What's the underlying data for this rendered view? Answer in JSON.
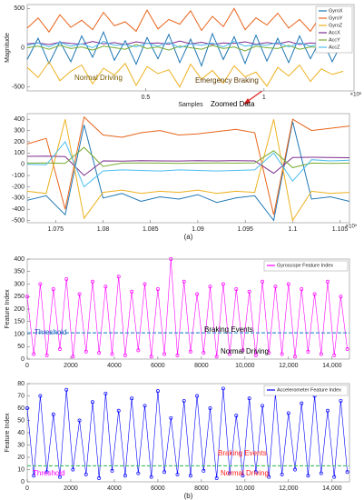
{
  "chart_data": [
    {
      "type": "line",
      "xlabel": "Samples",
      "ylabel": "Magnitude",
      "x_exponent": "×10⁶",
      "x": [
        0,
        46000,
        92000,
        138000,
        184000,
        230000,
        276000,
        322000,
        368000,
        414000,
        460000,
        506000,
        552000,
        598000,
        644000,
        690000,
        736000,
        782000,
        828000,
        874000,
        920000,
        966000,
        1012000,
        1058000,
        1104000,
        1150000,
        1196000,
        1242000,
        1288000,
        1334000
      ],
      "xlim": [
        0,
        1380000
      ],
      "xticks": [
        {
          "value": 500000,
          "label": "0.5"
        },
        {
          "value": 1000000,
          "label": "1"
        }
      ],
      "ylim": [
        -550,
        550
      ],
      "yticks": [
        -500,
        0,
        500
      ],
      "legend": "upper right",
      "series": [
        {
          "name": "GyroX",
          "color": "#1f77b4",
          "values": [
            -150,
            120,
            -200,
            80,
            -180,
            150,
            -120,
            200,
            -160,
            90,
            -210,
            130,
            -140,
            170,
            -190,
            110,
            -230,
            180,
            -150,
            140,
            -200,
            160,
            -170,
            120,
            -190,
            150,
            -140,
            130,
            -180,
            100
          ]
        },
        {
          "name": "GyroY",
          "color": "#e8641b",
          "values": [
            250,
            380,
            200,
            420,
            260,
            350,
            230,
            450,
            280,
            330,
            210,
            480,
            240,
            360,
            300,
            470,
            220,
            400,
            270,
            500,
            230,
            380,
            290,
            440,
            250,
            360,
            210,
            420,
            260,
            300
          ]
        },
        {
          "name": "GyroZ",
          "color": "#edb120",
          "values": [
            -250,
            -380,
            -180,
            -420,
            -300,
            -220,
            -460,
            -260,
            -350,
            -200,
            -480,
            -240,
            -330,
            -280,
            -500,
            -210,
            -400,
            -290,
            -450,
            -230,
            -370,
            -310,
            -490,
            -250,
            -360,
            -220,
            -430,
            -270,
            -340,
            -300
          ]
        },
        {
          "name": "AccX",
          "color": "#7e2f8e",
          "values": [
            50,
            60,
            40,
            70,
            55,
            45,
            80,
            50,
            65,
            40,
            75,
            55,
            60,
            45,
            85,
            50,
            70,
            40,
            60,
            55,
            75,
            45,
            65,
            50,
            80,
            40,
            60,
            55,
            70,
            50
          ]
        },
        {
          "name": "AccY",
          "color": "#77ac30",
          "values": [
            0,
            20,
            -20,
            30,
            -10,
            10,
            -30,
            20,
            0,
            -20,
            40,
            -10,
            10,
            -30,
            20,
            0,
            -20,
            30,
            -10,
            10,
            -40,
            20,
            0,
            -10,
            30,
            -20,
            10,
            0,
            -30,
            20
          ]
        },
        {
          "name": "AccZ",
          "color": "#4dbeee",
          "values": [
            30,
            60,
            10,
            70,
            20,
            50,
            0,
            80,
            30,
            40,
            10,
            60,
            20,
            70,
            0,
            50,
            30,
            60,
            10,
            80,
            20,
            40,
            30,
            70,
            10,
            60,
            20,
            50,
            0,
            40
          ]
        }
      ],
      "annotations": [
        {
          "text": "Normal Driving",
          "color": "#7a5a00"
        },
        {
          "text": "Emergency Braking",
          "color": "#5a3a00"
        }
      ]
    },
    {
      "type": "line",
      "x_exponent": "×10⁵",
      "caption": "(a)",
      "x": [
        107200,
        107400,
        107600,
        107800,
        108000,
        108200,
        108400,
        108600,
        108800,
        109000,
        109200,
        109400,
        109600,
        109800,
        110000,
        110200,
        110400,
        110600
      ],
      "xlim": [
        107200,
        110600
      ],
      "xticks": [
        {
          "value": 107500,
          "label": "1.075"
        },
        {
          "value": 108000,
          "label": "1.08"
        },
        {
          "value": 108500,
          "label": "1.085"
        },
        {
          "value": 109000,
          "label": "1.09"
        },
        {
          "value": 109500,
          "label": "1.095"
        },
        {
          "value": 110000,
          "label": "1.1"
        },
        {
          "value": 110500,
          "label": "1.105"
        }
      ],
      "ylim": [
        -520,
        450
      ],
      "yticks": [
        -500,
        -400,
        -300,
        -200,
        -100,
        0,
        100,
        200,
        300,
        400
      ],
      "series": [
        {
          "name": "GyroX",
          "color": "#1f77b4",
          "values": [
            -320,
            -280,
            -450,
            350,
            -300,
            -260,
            -330,
            -290,
            -310,
            -270,
            -340,
            -300,
            -280,
            -500,
            380,
            -310,
            -290,
            -330
          ]
        },
        {
          "name": "GyroY",
          "color": "#e8641b",
          "values": [
            180,
            230,
            -400,
            420,
            260,
            240,
            280,
            300,
            260,
            270,
            290,
            310,
            280,
            -450,
            400,
            300,
            320,
            340
          ]
        },
        {
          "name": "GyroZ",
          "color": "#edb120",
          "values": [
            -240,
            -260,
            400,
            -480,
            -250,
            -230,
            -260,
            -240,
            -250,
            -230,
            -260,
            -240,
            -250,
            400,
            -500,
            -240,
            -260,
            -250
          ]
        },
        {
          "name": "AccX",
          "color": "#7e2f8e",
          "values": [
            70,
            72,
            68,
            -100,
            30,
            28,
            32,
            30,
            29,
            31,
            30,
            32,
            30,
            -80,
            60,
            62,
            60,
            58
          ]
        },
        {
          "name": "AccY",
          "color": "#77ac30",
          "values": [
            10,
            12,
            8,
            150,
            -20,
            10,
            12,
            10,
            8,
            10,
            12,
            10,
            11,
            120,
            -30,
            10,
            8,
            10
          ]
        },
        {
          "name": "AccZ",
          "color": "#4dbeee",
          "values": [
            0,
            -5,
            200,
            -200,
            -60,
            -50,
            -55,
            -60,
            -50,
            -55,
            -60,
            -55,
            -50,
            100,
            -150,
            40,
            30,
            35
          ]
        }
      ],
      "annotations": [
        {
          "text": "Zoomed Data",
          "color": "#000000"
        }
      ]
    },
    {
      "type": "line",
      "markers": true,
      "ylabel": "Feature Index",
      "legend": "upper right",
      "threshold": 105,
      "threshold_color": "#3a8fd0",
      "x": [
        0,
        300,
        600,
        900,
        1200,
        1500,
        1800,
        2100,
        2400,
        2700,
        3000,
        3300,
        3600,
        3900,
        4200,
        4500,
        4800,
        5100,
        5400,
        5700,
        6000,
        6300,
        6600,
        6900,
        7200,
        7500,
        7800,
        8100,
        8400,
        8700,
        9000,
        9300,
        9600,
        9900,
        10200,
        10500,
        10800,
        11100,
        11400,
        11700,
        12000,
        12300,
        12600,
        12900,
        13200,
        13500,
        13800,
        14100,
        14400,
        14700
      ],
      "xlim": [
        0,
        14800
      ],
      "xticks": [
        0,
        2000,
        4000,
        6000,
        8000,
        {
          "value": 10000,
          "label": "10,000"
        },
        {
          "value": 12000,
          "label": "12,000"
        },
        {
          "value": 14000,
          "label": "14,000"
        }
      ],
      "ylim": [
        0,
        400
      ],
      "yticks": [
        0,
        50,
        100,
        150,
        200,
        250,
        300,
        350,
        400
      ],
      "series": [
        {
          "name": "Gyroscope Feature Index",
          "color": "#ff00ff",
          "values": [
            250,
            20,
            300,
            15,
            280,
            40,
            320,
            10,
            260,
            30,
            310,
            25,
            290,
            20,
            330,
            15,
            270,
            35,
            300,
            10,
            280,
            20,
            400,
            15,
            310,
            30,
            260,
            25,
            290,
            10,
            300,
            20,
            280,
            35,
            270,
            15,
            310,
            25,
            290,
            20,
            300,
            10,
            280,
            30,
            260,
            20,
            310,
            15,
            250,
            40
          ]
        }
      ],
      "annotations": [
        {
          "text": "Braking Events",
          "color": "#000000"
        },
        {
          "text": "Normal Driving",
          "color": "#000000"
        },
        {
          "text": "Threshold",
          "color": "#1f5fbf"
        }
      ]
    },
    {
      "type": "line",
      "markers": true,
      "ylabel": "Feature Index",
      "legend": "upper right",
      "threshold": 13,
      "threshold_color": "#3cc060",
      "caption": "(b)",
      "x": [
        0,
        300,
        600,
        900,
        1200,
        1500,
        1800,
        2100,
        2400,
        2700,
        3000,
        3300,
        3600,
        3900,
        4200,
        4500,
        4800,
        5100,
        5400,
        5700,
        6000,
        6300,
        6600,
        6900,
        7200,
        7500,
        7800,
        8100,
        8400,
        8700,
        9000,
        9300,
        9600,
        9900,
        10200,
        10500,
        10800,
        11100,
        11400,
        11700,
        12000,
        12300,
        12600,
        12900,
        13200,
        13500,
        13800,
        14100,
        14400,
        14700
      ],
      "xlim": [
        0,
        14800
      ],
      "xticks": [
        0,
        2000,
        4000,
        6000,
        8000,
        {
          "value": 10000,
          "label": "10,000"
        },
        {
          "value": 12000,
          "label": "12,000"
        },
        {
          "value": 14000,
          "label": "14,000"
        }
      ],
      "ylim": [
        0,
        80
      ],
      "yticks": [
        0,
        10,
        20,
        30,
        40,
        50,
        60,
        70,
        80
      ],
      "series": [
        {
          "name": "Accelerometer Feature Index",
          "color": "#0000ff",
          "values": [
            60,
            5,
            70,
            8,
            55,
            4,
            75,
            10,
            50,
            6,
            65,
            3,
            72,
            9,
            58,
            5,
            68,
            7,
            62,
            4,
            74,
            8,
            52,
            6,
            66,
            5,
            70,
            9,
            60,
            3,
            76,
            7,
            54,
            5,
            68,
            8,
            62,
            4,
            72,
            6,
            56,
            10,
            64,
            5,
            70,
            7,
            58,
            4,
            66,
            8
          ]
        }
      ],
      "annotations": [
        {
          "text": "Braking Events",
          "color": "#ff2020"
        },
        {
          "text": "Normal Driving",
          "color": "#ff2020"
        },
        {
          "text": "Threshold",
          "color": "#ff00ff"
        }
      ]
    }
  ]
}
